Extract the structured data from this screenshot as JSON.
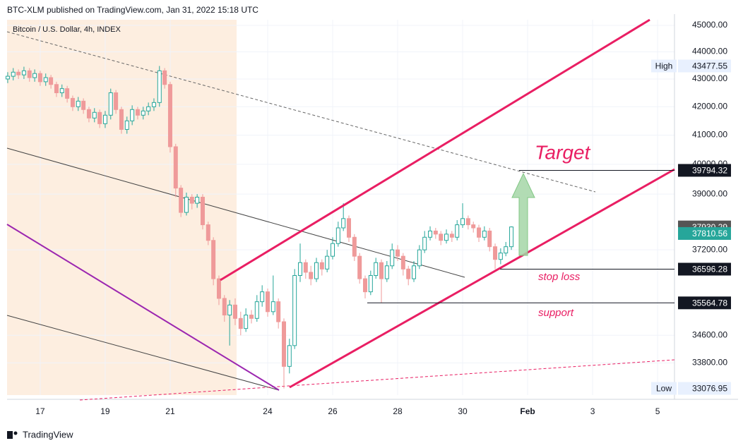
{
  "chart_data": {
    "type": "candlestick",
    "header": "BTC-XLM published on TradingView.com, Jan 31, 2022 15:18 UTC",
    "title": "Bitcoin / U.S. Dollar, 4h, INDEX",
    "footer": "TradingView",
    "x": [
      16,
      16.17,
      16.33,
      16.5,
      16.67,
      16.83,
      17,
      17.17,
      17.33,
      17.5,
      17.67,
      17.83,
      18,
      18.17,
      18.33,
      18.5,
      18.67,
      18.83,
      19,
      19.17,
      19.33,
      19.5,
      19.67,
      19.83,
      20,
      20.17,
      20.33,
      20.5,
      20.67,
      20.83,
      21,
      21.17,
      21.33,
      21.5,
      21.67,
      21.83,
      22,
      22.17,
      22.33,
      22.5,
      22.67,
      22.83,
      23,
      23.17,
      23.33,
      23.5,
      23.67,
      23.83,
      24,
      24.17,
      24.33,
      24.5,
      24.67,
      24.83,
      25,
      25.17,
      25.33,
      25.5,
      25.67,
      25.83,
      26,
      26.17,
      26.33,
      26.5,
      26.67,
      26.83,
      27,
      27.17,
      27.33,
      27.5,
      27.67,
      27.83,
      28,
      28.17,
      28.33,
      28.5,
      28.67,
      28.83,
      29,
      29.17,
      29.33,
      29.5,
      29.67,
      29.83,
      30,
      30.17,
      30.33,
      30.5,
      30.67,
      30.83,
      31,
      31.17,
      31.33,
      31.5
    ],
    "open": [
      43000,
      43100,
      43250,
      43150,
      43300,
      43050,
      43200,
      42900,
      43050,
      42800,
      42500,
      42650,
      42300,
      42000,
      42200,
      41900,
      41600,
      41800,
      41400,
      41700,
      42500,
      41900,
      41200,
      41500,
      41900,
      41700,
      41850,
      42000,
      42150,
      43300,
      42800,
      40600,
      39200,
      38400,
      38900,
      38700,
      38900,
      38000,
      37500,
      36300,
      35700,
      35200,
      35500,
      35100,
      34800,
      35200,
      35100,
      35600,
      35900,
      35300,
      35600,
      35000,
      33700,
      34300,
      36400,
      36800,
      36500,
      36300,
      36800,
      36600,
      37000,
      37400,
      37900,
      38200,
      37600,
      37000,
      36300,
      35900,
      36400,
      36800,
      36300,
      36700,
      37200,
      37000,
      36600,
      36300,
      36700,
      37200,
      37600,
      37800,
      37700,
      37500,
      37700,
      37600,
      38000,
      38200,
      38000,
      37900,
      37600,
      37800,
      37300,
      36900,
      37100,
      37300
    ],
    "high": [
      43250,
      43400,
      43350,
      43450,
      43400,
      43350,
      43300,
      43200,
      43150,
      42900,
      42800,
      42750,
      42400,
      42350,
      42300,
      42000,
      41950,
      41900,
      41850,
      42650,
      42600,
      42000,
      41650,
      42050,
      42000,
      42000,
      42150,
      42300,
      43477.55,
      43400,
      42900,
      40700,
      39300,
      39050,
      39000,
      39000,
      39000,
      38100,
      37600,
      36400,
      35800,
      35650,
      35700,
      35300,
      35400,
      35350,
      35800,
      36100,
      36000,
      36400,
      35700,
      35100,
      34500,
      36600,
      37400,
      36900,
      36700,
      36950,
      36900,
      37200,
      37600,
      38100,
      38700,
      38300,
      37700,
      37100,
      36400,
      36550,
      36950,
      36900,
      36850,
      37400,
      37350,
      37100,
      36700,
      36850,
      37350,
      37800,
      37950,
      37900,
      37800,
      37850,
      37800,
      38150,
      38700,
      38300,
      38100,
      38000,
      37950,
      37900,
      37400,
      37250,
      37450,
      37950
    ],
    "low": [
      42850,
      42950,
      43000,
      43000,
      42900,
      42900,
      42750,
      42750,
      42650,
      42350,
      42350,
      42150,
      41850,
      41850,
      41750,
      41450,
      41450,
      41250,
      41250,
      41550,
      41750,
      41050,
      41050,
      41350,
      41550,
      41550,
      41700,
      41850,
      42000,
      42650,
      40400,
      38900,
      38250,
      38300,
      38500,
      38550,
      37850,
      37350,
      36100,
      35500,
      35000,
      34300,
      34900,
      34600,
      34700,
      34950,
      35000,
      35450,
      35150,
      35200,
      34800,
      33076.95,
      33500,
      34200,
      36200,
      36300,
      36100,
      36200,
      36400,
      36500,
      36900,
      37300,
      37800,
      37450,
      36850,
      36150,
      35700,
      35800,
      36300,
      35564.78,
      36200,
      36600,
      36850,
      36400,
      36100,
      36200,
      36600,
      37100,
      37500,
      37550,
      37350,
      37400,
      37450,
      37500,
      37900,
      37850,
      37750,
      37450,
      37500,
      37150,
      36596.28,
      36750,
      37000,
      37200
    ],
    "close": [
      43100,
      43250,
      43150,
      43300,
      43050,
      43200,
      42900,
      43050,
      42800,
      42500,
      42650,
      42300,
      42000,
      42200,
      41900,
      41600,
      41800,
      41400,
      41700,
      42500,
      41900,
      41200,
      41500,
      41900,
      41700,
      41850,
      42000,
      42150,
      43300,
      42800,
      40600,
      39200,
      38400,
      38900,
      38700,
      38900,
      38000,
      37500,
      36300,
      35700,
      35200,
      35500,
      35100,
      34800,
      35200,
      35100,
      35600,
      35900,
      35300,
      35600,
      35000,
      33700,
      34300,
      36400,
      36800,
      36500,
      36300,
      36800,
      36600,
      37000,
      37400,
      37900,
      38200,
      37600,
      37000,
      36300,
      35900,
      36400,
      36800,
      36300,
      36700,
      37200,
      37000,
      36600,
      36300,
      36700,
      37200,
      37600,
      37800,
      37700,
      37500,
      37700,
      37600,
      38000,
      38200,
      38000,
      37900,
      37600,
      37800,
      37300,
      36900,
      37100,
      37300,
      37930.29
    ],
    "up_color": "#26a69a",
    "down_color": "#ef9a9a",
    "log_scale": true,
    "grid": true,
    "xlim": [
      15.98,
      36.52
    ],
    "xticks": [
      17,
      19,
      21,
      24,
      26,
      {
        "value": 28,
        "label": "28"
      },
      30,
      {
        "value": 32,
        "label": "Feb"
      },
      {
        "value": 34,
        "label": "3"
      },
      {
        "value": 36,
        "label": "5"
      }
    ],
    "ylim": [
      32890,
      45215
    ],
    "yticks": [
      {
        "value": 45000,
        "label": "45000.00"
      },
      {
        "value": 44000,
        "label": "44000.00"
      },
      {
        "value": 43000,
        "label": "43000.00"
      },
      {
        "value": 42000,
        "label": "42000.00"
      },
      {
        "value": 41000,
        "label": "41000.00"
      },
      {
        "value": 40000,
        "label": "40000.00"
      },
      {
        "value": 39000,
        "label": "39000.00"
      },
      {
        "value": 37200,
        "label": "37200.00"
      },
      {
        "value": 34600,
        "label": "34600.00"
      },
      {
        "value": 33800,
        "label": "33800.00"
      }
    ],
    "high_label": {
      "text": "High",
      "value": 43477.55
    },
    "low_label": {
      "text": "Low",
      "value": 33076.95
    },
    "levels": [
      39794.32,
      36596.28,
      35564.78
    ],
    "last_price": 37930.29,
    "second_price": 37810.56,
    "annotations": [
      "Target",
      "stop loss",
      "support"
    ]
  }
}
